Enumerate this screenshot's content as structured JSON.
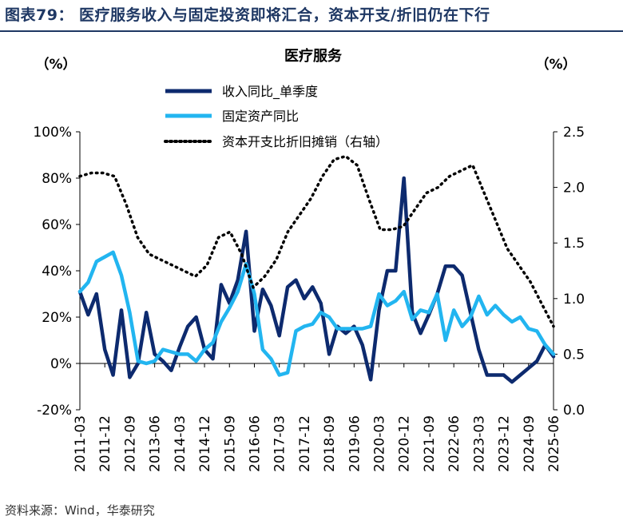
{
  "figure": {
    "title": "图表79：  医疗服务收入与固定投资即将汇合，资本开支/折旧仍在下行",
    "source": "资料来源：Wind，华泰研究"
  },
  "colors": {
    "series1": "#0d2a6e",
    "series2": "#22b5f0",
    "series3": "#000000",
    "title": "#1f3864"
  },
  "chart_data": {
    "type": "line",
    "title": "医疗服务",
    "left_unit": "（%）",
    "right_unit": "（%）",
    "x_ticks": [
      "2011-03",
      "2011-12",
      "2012-09",
      "2013-06",
      "2014-03",
      "2014-12",
      "2015-09",
      "2016-06",
      "2017-03",
      "2017-12",
      "2018-09",
      "2019-06",
      "2020-03",
      "2020-12",
      "2021-09",
      "2022-06",
      "2023-03",
      "2023-12",
      "2024-09",
      "2025-06"
    ],
    "y_left": {
      "min": -20,
      "max": 100,
      "ticks": [
        "-20%",
        "0%",
        "20%",
        "40%",
        "60%",
        "80%",
        "100%"
      ]
    },
    "y_right": {
      "min": 0.0,
      "max": 2.5,
      "ticks": [
        "0.0",
        "0.5",
        "1.0",
        "1.5",
        "2.0",
        "2.5"
      ]
    },
    "series": [
      {
        "name": "收入同比_单季度",
        "axis": "left",
        "style": "solid",
        "values": [
          31,
          21,
          30,
          6,
          -5,
          23,
          -6,
          0,
          22,
          4,
          1,
          -3,
          7,
          16,
          20,
          6,
          2,
          34,
          26,
          36,
          57,
          14,
          32,
          25,
          12,
          33,
          36,
          28,
          33,
          26,
          4,
          16,
          13,
          16,
          8,
          -7,
          23,
          40,
          40,
          80,
          22,
          13,
          21,
          30,
          42,
          42,
          38,
          22,
          6,
          -5,
          -5,
          -5,
          -8,
          -5,
          -2,
          1,
          8,
          3
        ]
      },
      {
        "name": "固定资产同比",
        "axis": "left",
        "style": "solid",
        "values": [
          31,
          35,
          44,
          46,
          48,
          38,
          22,
          1,
          0,
          1,
          6,
          5,
          4,
          4,
          1,
          6,
          9,
          18,
          24,
          31,
          43,
          30,
          6,
          2,
          -5,
          -4,
          14,
          16,
          17,
          22,
          20,
          15,
          15,
          15,
          15,
          16,
          30,
          25,
          27,
          31,
          19,
          23,
          22,
          30,
          10,
          23,
          16,
          20,
          29,
          21,
          25,
          21,
          18,
          20,
          15,
          14,
          8,
          4
        ]
      },
      {
        "name": "资本开支比折旧摊销（右轴）",
        "axis": "right",
        "style": "dotted",
        "values": [
          2.1,
          2.13,
          2.13,
          2.1,
          1.85,
          1.55,
          1.4,
          1.35,
          1.3,
          1.25,
          1.2,
          1.3,
          1.55,
          1.6,
          1.4,
          1.1,
          1.2,
          1.35,
          1.6,
          1.75,
          1.9,
          2.1,
          2.25,
          2.28,
          2.2,
          1.9,
          1.62,
          1.62,
          1.65,
          1.8,
          1.95,
          2.0,
          2.1,
          2.15,
          2.2,
          1.95,
          1.7,
          1.45,
          1.3,
          1.15,
          0.95,
          0.75
        ]
      }
    ],
    "legend_position": "top-left"
  }
}
